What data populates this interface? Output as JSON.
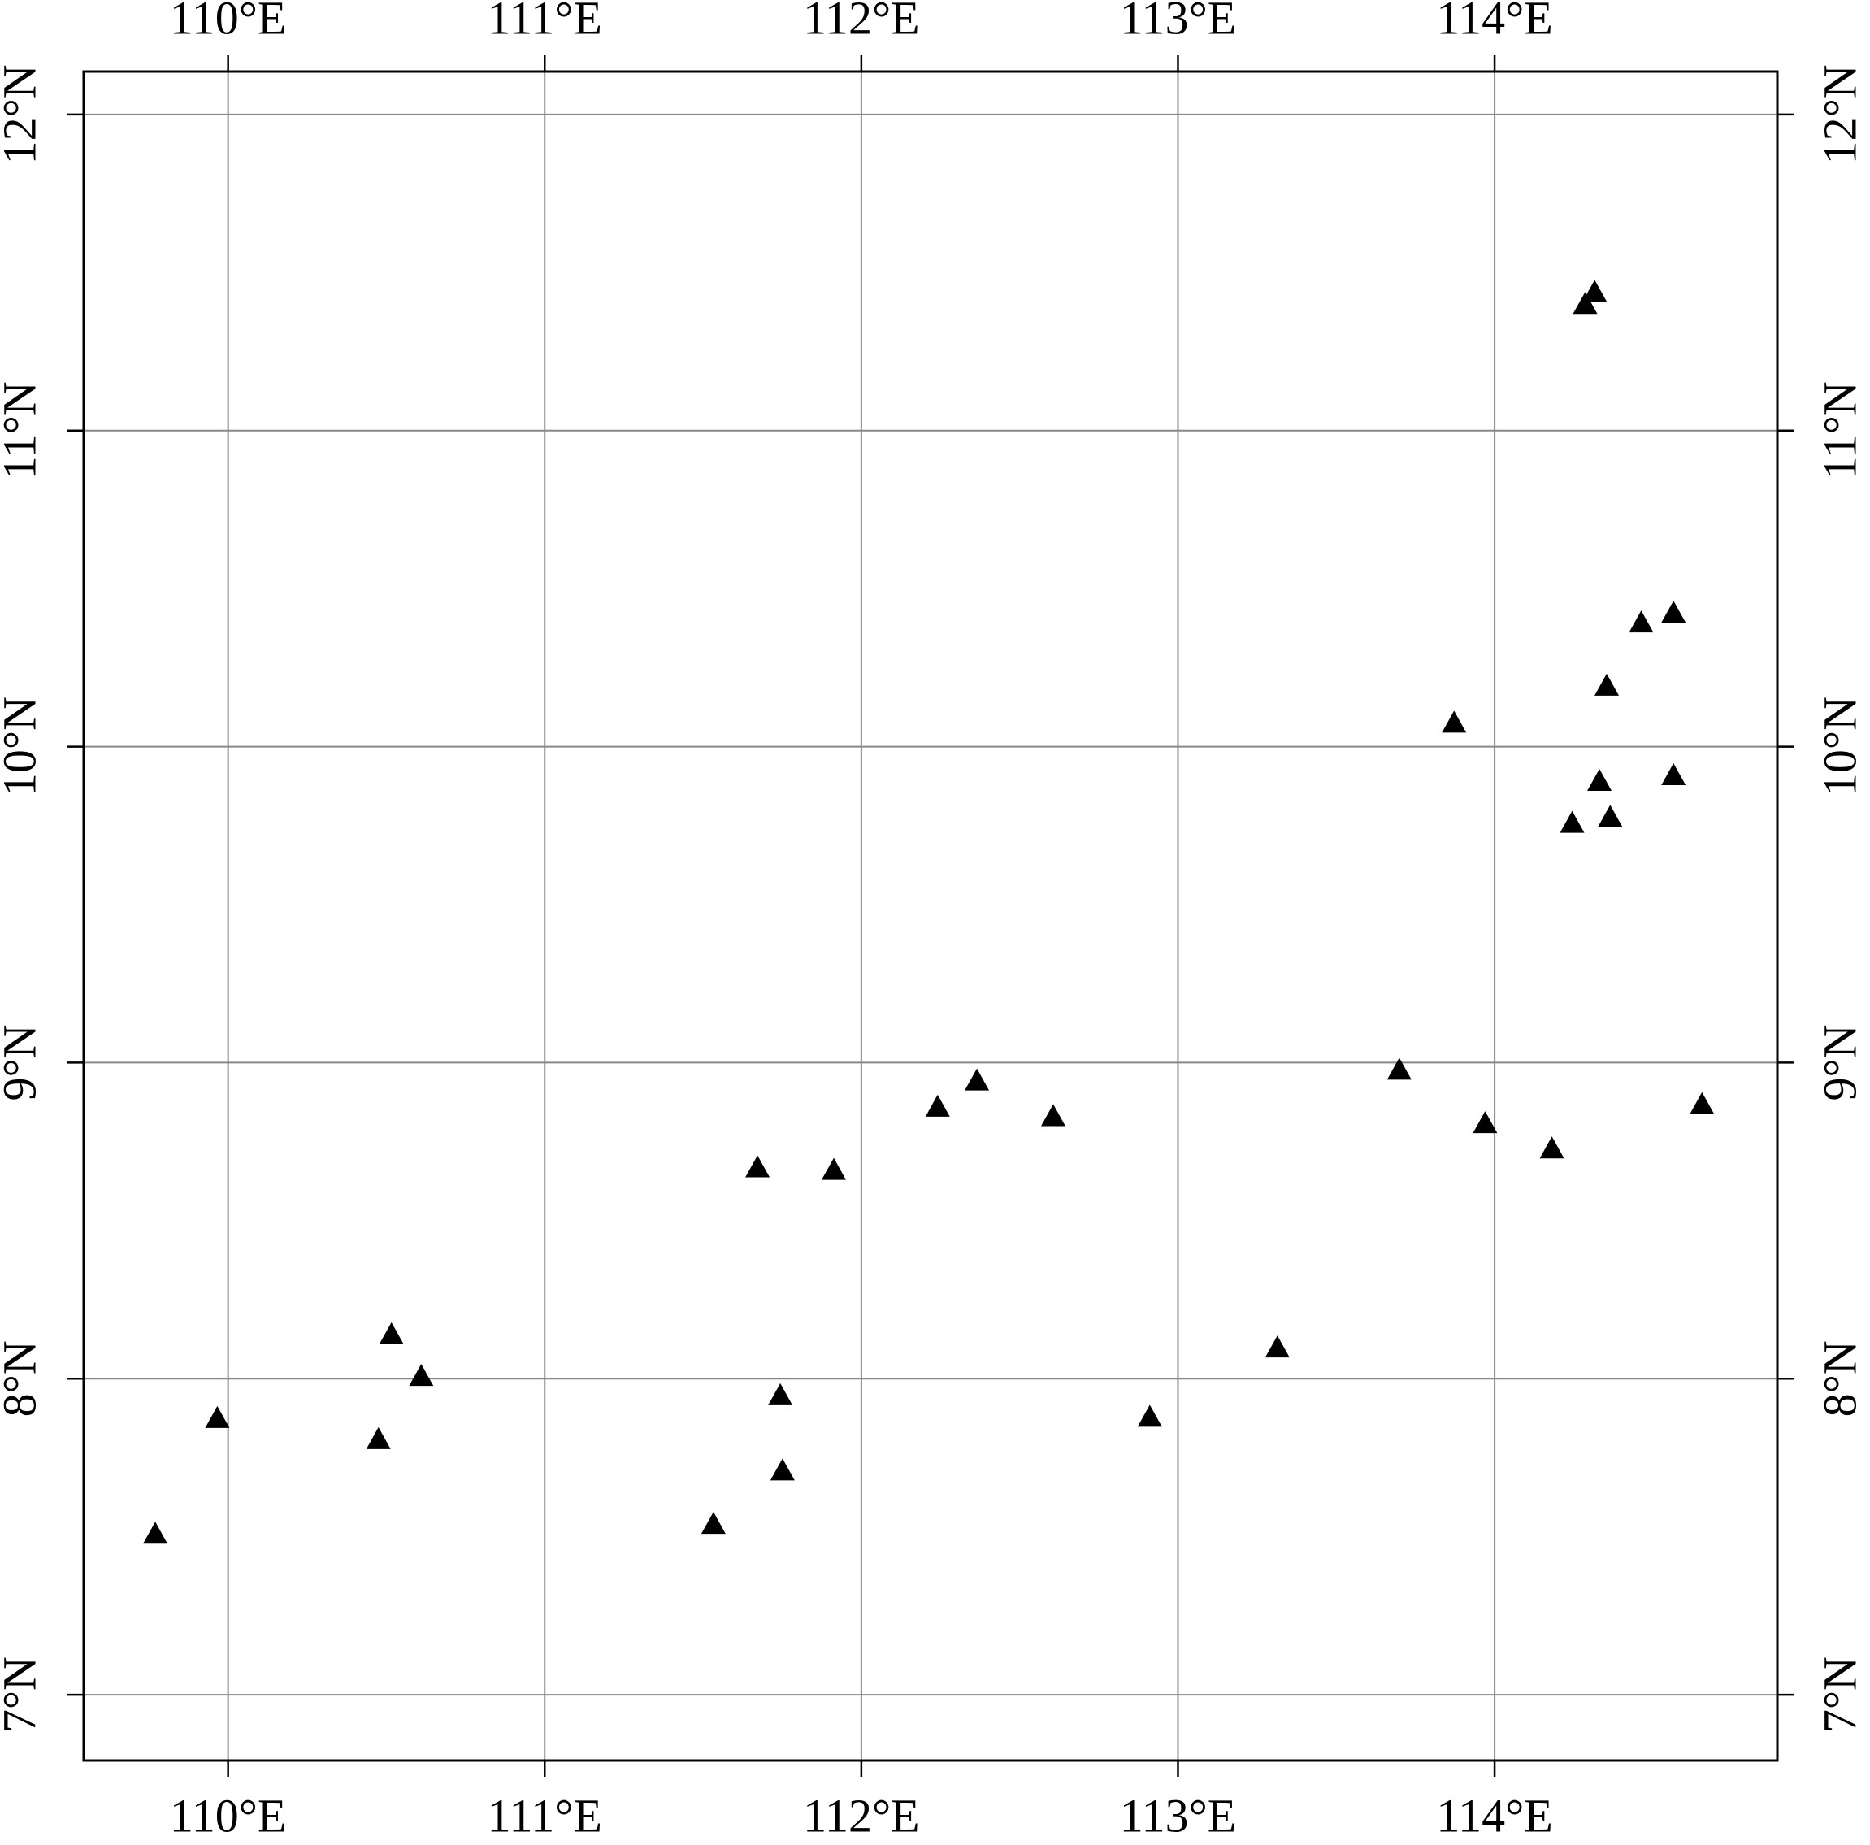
{
  "chart_data": {
    "type": "scatter",
    "marker": "triangle",
    "color": "#000000",
    "grid": true,
    "xlim": [
      109.544,
      114.893
    ],
    "ylim": [
      6.792,
      12.136
    ],
    "xticks": [
      {
        "value": 110,
        "label": "110°E"
      },
      {
        "value": 111,
        "label": "111°E"
      },
      {
        "value": 112,
        "label": "112°E"
      },
      {
        "value": 113,
        "label": "113°E"
      },
      {
        "value": 114,
        "label": "114°E"
      }
    ],
    "yticks": [
      {
        "value": 7,
        "label": "7°N"
      },
      {
        "value": 8,
        "label": "8°N"
      },
      {
        "value": 9,
        "label": "9°N"
      },
      {
        "value": 10,
        "label": "10°N"
      },
      {
        "value": 11,
        "label": "11°N"
      },
      {
        "value": 12,
        "label": "12°N"
      }
    ],
    "x": [
      114.316,
      114.286,
      114.565,
      114.463,
      114.354,
      113.872,
      114.331,
      114.565,
      114.365,
      114.245,
      113.699,
      114.655,
      113.97,
      114.181,
      112.365,
      112.241,
      112.606,
      111.672,
      111.913,
      110.516,
      110.61,
      109.966,
      110.475,
      109.77,
      111.744,
      111.751,
      111.533,
      112.911,
      113.314
    ],
    "values": [
      11.438,
      11.4,
      10.423,
      10.392,
      10.192,
      10.075,
      9.891,
      9.909,
      9.777,
      9.758,
      8.977,
      8.868,
      8.808,
      8.728,
      8.943,
      8.86,
      8.83,
      8.668,
      8.66,
      8.14,
      8.008,
      7.875,
      7.808,
      7.509,
      7.947,
      7.709,
      7.54,
      7.879,
      8.098
    ]
  }
}
